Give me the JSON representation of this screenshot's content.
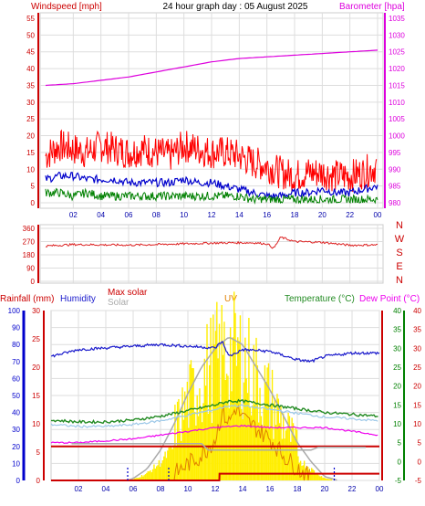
{
  "header": {
    "title": "24 hour graph day : 05 August 2025",
    "left_label": "Windspeed [mph]",
    "right_label": "Barometer [hpa]"
  },
  "colors": {
    "wind": "#ff0000",
    "gust": "#ff0000",
    "avg_wind": "#0000cc",
    "min_wind": "#008000",
    "barometer": "#dd00dd",
    "direction": "#dd2222",
    "humidity": "#1a1acc",
    "temperature": "#238b23",
    "dewpoint": "#ee00ee",
    "solar": "#aaaaaa",
    "max_solar": "#cc0000",
    "uv": "#ffee00",
    "uv_line": "#e08000",
    "rain": "#cc0000",
    "grid": "#dddddd",
    "axis_red": "#cc0000",
    "axis_blue": "#0000cc",
    "axis_green": "#008000"
  },
  "chart_data": [
    {
      "type": "line",
      "title": "24 hour graph day : 05 August 2025",
      "x_ticks": [
        "02",
        "04",
        "06",
        "08",
        "10",
        "12",
        "14",
        "16",
        "18",
        "20",
        "22",
        "00"
      ],
      "ylabel_left": "Windspeed [mph]",
      "ylabel_right": "Barometer [hpa]",
      "ylim_left": [
        0,
        55
      ],
      "yticks_left": [
        "0",
        "5",
        "10",
        "15",
        "20",
        "25",
        "30",
        "35",
        "40",
        "45",
        "50",
        "55"
      ],
      "ylim_right": [
        980,
        1035
      ],
      "yticks_right": [
        "980",
        "985",
        "990",
        "995",
        "1000",
        "1005",
        "1010",
        "1015",
        "1020",
        "1025",
        "1030",
        "1035"
      ],
      "series": [
        {
          "name": "gust",
          "axis": "left",
          "x": [
            0,
            1,
            2,
            3,
            4,
            5,
            6,
            7,
            8,
            9,
            10,
            11,
            12,
            13,
            14,
            15,
            16,
            17,
            18,
            19,
            20,
            21,
            22,
            23,
            24
          ],
          "values": [
            14,
            17,
            16,
            15,
            17,
            16,
            15,
            16,
            15,
            14,
            17,
            16,
            15,
            15,
            14,
            12,
            11,
            9,
            8,
            9,
            9,
            8,
            8,
            9,
            11
          ]
        },
        {
          "name": "avg",
          "axis": "left",
          "x": [
            0,
            1,
            2,
            3,
            4,
            5,
            6,
            7,
            8,
            9,
            10,
            11,
            12,
            13,
            14,
            15,
            16,
            17,
            18,
            19,
            20,
            21,
            22,
            23,
            24
          ],
          "values": [
            7,
            8,
            8,
            7,
            7,
            7,
            6,
            6,
            6,
            6,
            7,
            6,
            6,
            5,
            4,
            3,
            2,
            2,
            3,
            3,
            4,
            3,
            3,
            4,
            5
          ]
        },
        {
          "name": "min",
          "axis": "left",
          "x": [
            0,
            1,
            2,
            3,
            4,
            5,
            6,
            7,
            8,
            9,
            10,
            11,
            12,
            13,
            14,
            15,
            16,
            17,
            18,
            19,
            20,
            21,
            22,
            23,
            24
          ],
          "values": [
            3,
            3,
            2,
            3,
            2,
            2,
            2,
            2,
            2,
            2,
            2,
            2,
            2,
            2,
            2,
            1,
            1,
            1,
            1,
            1,
            1,
            1,
            1,
            1,
            1
          ]
        },
        {
          "name": "barometer",
          "axis": "right",
          "x": [
            0,
            2,
            4,
            6,
            8,
            10,
            12,
            14,
            16,
            18,
            20,
            22,
            24
          ],
          "values": [
            1015,
            1015.5,
            1016.5,
            1017.5,
            1019,
            1020.5,
            1022,
            1023,
            1023.5,
            1024,
            1024.5,
            1025,
            1025.5
          ]
        }
      ]
    },
    {
      "type": "line",
      "ylim": [
        0,
        360
      ],
      "yticks": [
        "0",
        "90",
        "180",
        "270",
        "360"
      ],
      "compass_labels": [
        "N",
        "W",
        "S",
        "E",
        "N"
      ],
      "series": [
        {
          "name": "direction",
          "x": [
            0,
            2,
            4,
            6,
            8,
            10,
            12,
            14,
            15,
            16,
            16.5,
            17,
            18,
            20,
            22,
            24
          ],
          "values": [
            240,
            250,
            248,
            246,
            250,
            255,
            260,
            262,
            262,
            255,
            225,
            300,
            270,
            265,
            245,
            248
          ]
        }
      ]
    },
    {
      "type": "line",
      "legend": [
        "Rainfall (mm)",
        "Humidity",
        "Max solar",
        "Solar",
        "UV",
        "Temperature (°C)",
        "Dew Point (°C)"
      ],
      "ylim_humidity": [
        0,
        100
      ],
      "yticks_humidity": [
        "0",
        "10",
        "20",
        "30",
        "40",
        "50",
        "60",
        "70",
        "80",
        "90",
        "100"
      ],
      "ylim_rain": [
        0,
        30
      ],
      "yticks_rain": [
        "0",
        "5",
        "10",
        "15",
        "20",
        "25",
        "30"
      ],
      "ylim_temp": [
        -5,
        40
      ],
      "yticks_temp": [
        "-5",
        "0",
        "5",
        "10",
        "15",
        "20",
        "25",
        "30",
        "35",
        "40"
      ],
      "x_ticks": [
        "02",
        "04",
        "06",
        "08",
        "10",
        "12",
        "14",
        "16",
        "18",
        "20",
        "22",
        "00"
      ],
      "series": [
        {
          "name": "Humidity",
          "axis": "humidity",
          "x": [
            0,
            2,
            4,
            6,
            8,
            10,
            12,
            12.5,
            13,
            14,
            16,
            18,
            19,
            20,
            22,
            24
          ],
          "values": [
            73,
            77,
            78,
            79,
            80,
            79,
            78,
            82,
            73,
            77,
            76,
            71,
            70,
            73,
            75,
            75
          ]
        },
        {
          "name": "Temperature (°C)",
          "axis": "temp",
          "x": [
            0,
            2,
            4,
            6,
            8,
            10,
            12,
            13,
            14,
            16,
            18,
            20,
            22,
            24
          ],
          "values": [
            11,
            10.5,
            10.5,
            11,
            12,
            13.5,
            15,
            16,
            16,
            15,
            14,
            13,
            12.5,
            12
          ]
        },
        {
          "name": "Dew Point (°C)",
          "axis": "temp",
          "x": [
            0,
            2,
            4,
            6,
            8,
            10,
            12,
            14,
            16,
            18,
            20,
            22,
            24
          ],
          "values": [
            5,
            5,
            5.5,
            6,
            7,
            8,
            9,
            9.5,
            9,
            9,
            9,
            8,
            7
          ]
        },
        {
          "name": "Solar",
          "axis": "solar",
          "x": [
            5.5,
            6,
            7,
            8,
            9,
            10,
            11,
            12,
            13,
            14,
            15,
            16,
            17,
            18,
            19,
            20,
            21
          ],
          "values": [
            0,
            5,
            30,
            80,
            150,
            230,
            300,
            350,
            380,
            360,
            300,
            240,
            170,
            100,
            50,
            10,
            0
          ]
        },
        {
          "name": "UV",
          "axis": "solar",
          "x": [
            9,
            10,
            11,
            12,
            12.5,
            13,
            13.5,
            14,
            15,
            16,
            17,
            18,
            19
          ],
          "values": [
            30,
            80,
            120,
            200,
            330,
            280,
            350,
            300,
            250,
            200,
            120,
            60,
            10
          ]
        },
        {
          "name": "Max solar",
          "axis": "humidity",
          "x": [
            0,
            2,
            4,
            6,
            8,
            10,
            12,
            14,
            16,
            18,
            20,
            22,
            24
          ],
          "values": [
            20,
            20,
            20,
            20,
            20,
            20,
            20,
            20,
            20,
            20,
            20,
            20,
            20
          ]
        },
        {
          "name": "Rainfall (mm)",
          "axis": "rain",
          "x": [
            0,
            12.3,
            12.31,
            24
          ],
          "values": [
            0,
            0,
            1.2,
            1.2
          ]
        }
      ]
    }
  ]
}
